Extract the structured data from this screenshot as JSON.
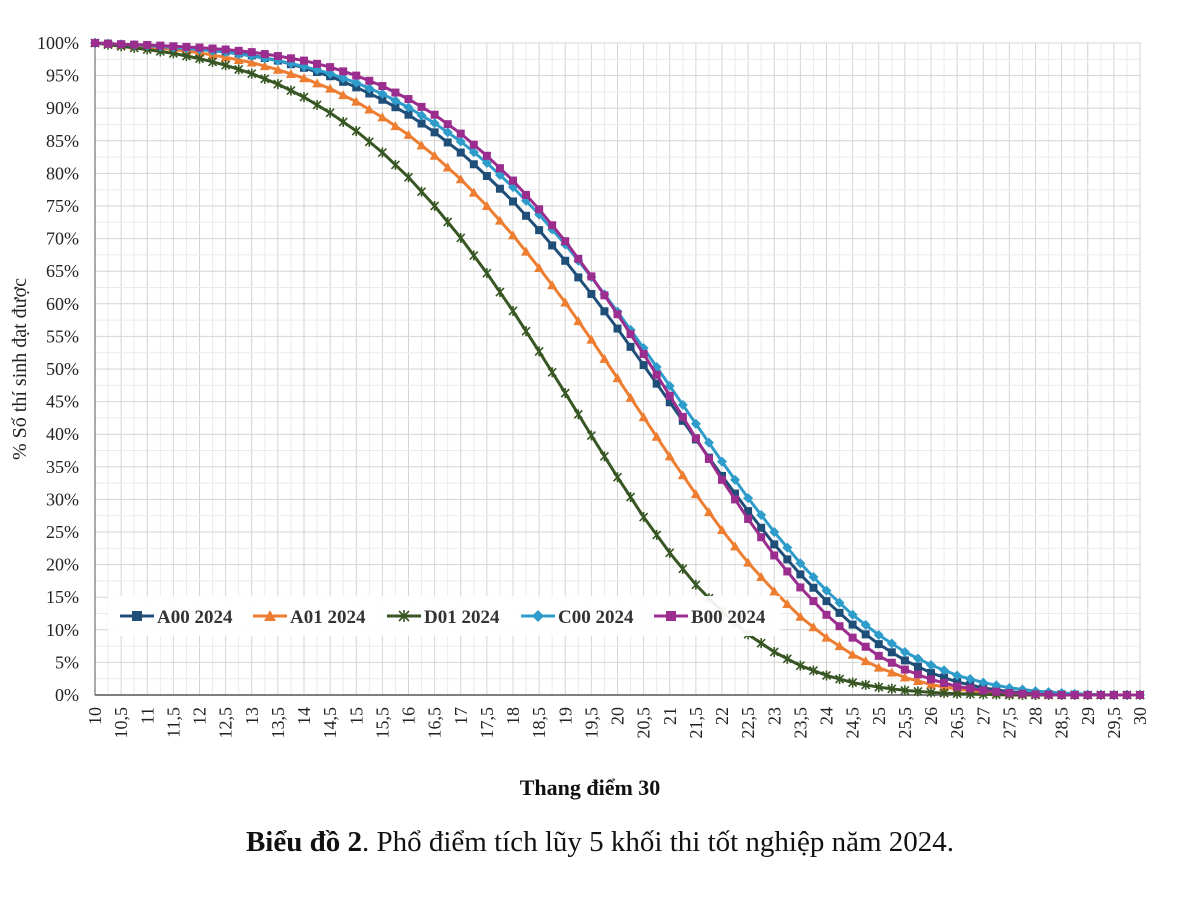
{
  "caption": {
    "bold": "Biểu đồ 2",
    "rest": ". Phổ điểm tích lũy 5 khối thi tốt nghiệp năm 2024."
  },
  "chart_data": {
    "type": "line",
    "title": "",
    "xlabel": "Thang điểm 30",
    "ylabel": "% Số thí sinh đạt được",
    "xlim": [
      10,
      30
    ],
    "ylim": [
      0,
      100
    ],
    "x_tick_labels": [
      "10",
      "10,5",
      "11",
      "11,5",
      "12",
      "12,5",
      "13",
      "13,5",
      "14",
      "14,5",
      "15",
      "15,5",
      "16",
      "16,5",
      "17",
      "17,5",
      "18",
      "18,5",
      "19",
      "19,5",
      "20",
      "20,5",
      "21",
      "21,5",
      "22",
      "22,5",
      "23",
      "23,5",
      "24",
      "24,5",
      "25",
      "25,5",
      "26",
      "26,5",
      "27",
      "27,5",
      "28",
      "28,5",
      "29",
      "29,5",
      "30"
    ],
    "y_tick_labels": [
      "0%",
      "5%",
      "10%",
      "15%",
      "20%",
      "25%",
      "30%",
      "35%",
      "40%",
      "45%",
      "50%",
      "55%",
      "60%",
      "65%",
      "70%",
      "75%",
      "80%",
      "85%",
      "90%",
      "95%",
      "100%"
    ],
    "grid": true,
    "legend_position": "bottom-left",
    "x": [
      10,
      10.5,
      11,
      11.5,
      12,
      12.5,
      13,
      13.5,
      14,
      14.5,
      15,
      15.5,
      16,
      16.5,
      17,
      17.5,
      18,
      18.5,
      19,
      19.5,
      20,
      20.5,
      21,
      21.5,
      22,
      22.5,
      23,
      23.5,
      24,
      24.5,
      25,
      25.5,
      26,
      26.5,
      27,
      27.5,
      28,
      28.5,
      29,
      29.5,
      30
    ],
    "series": [
      {
        "name": "A00 2024",
        "color": "#1f4e79",
        "marker": "square",
        "values": [
          100,
          99.8,
          99.6,
          99.4,
          99.1,
          98.7,
          98.1,
          97.3,
          96.2,
          94.9,
          93.2,
          91.3,
          89.0,
          86.3,
          83.2,
          79.6,
          75.7,
          71.3,
          66.6,
          61.5,
          56.2,
          50.6,
          44.9,
          39.2,
          33.6,
          28.2,
          23.1,
          18.5,
          14.4,
          10.8,
          7.8,
          5.3,
          3.4,
          2.0,
          1.1,
          0.5,
          0.2,
          0.1,
          0,
          0,
          0
        ]
      },
      {
        "name": "A01 2024",
        "color": "#ed7d31",
        "marker": "triangle",
        "values": [
          100,
          99.7,
          99.4,
          99.0,
          98.5,
          97.8,
          97.0,
          95.9,
          94.6,
          93.0,
          91.0,
          88.6,
          85.9,
          82.7,
          79.1,
          75.0,
          70.5,
          65.5,
          60.2,
          54.5,
          48.6,
          42.6,
          36.6,
          30.8,
          25.3,
          20.3,
          15.9,
          12.0,
          8.8,
          6.2,
          4.2,
          2.7,
          1.6,
          0.9,
          0.5,
          0.2,
          0.1,
          0,
          0,
          0,
          0
        ]
      },
      {
        "name": "D01 2024",
        "color": "#375623",
        "marker": "star",
        "values": [
          100,
          99.5,
          99.0,
          98.4,
          97.6,
          96.6,
          95.3,
          93.7,
          91.7,
          89.3,
          86.5,
          83.2,
          79.4,
          75.0,
          70.1,
          64.7,
          58.9,
          52.7,
          46.3,
          39.8,
          33.4,
          27.3,
          21.8,
          16.9,
          12.8,
          9.3,
          6.6,
          4.5,
          3.0,
          1.9,
          1.2,
          0.7,
          0.4,
          0.2,
          0.1,
          0,
          0,
          0,
          0,
          0,
          0
        ]
      },
      {
        "name": "C00 2024",
        "color": "#2e9cca",
        "marker": "diamond",
        "values": [
          100,
          99.8,
          99.6,
          99.3,
          99.0,
          98.6,
          98.0,
          97.3,
          96.4,
          95.3,
          93.9,
          92.2,
          90.1,
          87.7,
          84.9,
          81.6,
          77.9,
          73.7,
          69.1,
          64.1,
          58.8,
          53.2,
          47.4,
          41.6,
          35.8,
          30.2,
          25.0,
          20.2,
          16.0,
          12.3,
          9.2,
          6.6,
          4.6,
          3.0,
          1.9,
          1.1,
          0.6,
          0.3,
          0.1,
          0,
          0
        ]
      },
      {
        "name": "B00 2024",
        "color": "#9b2d8e",
        "marker": "square",
        "values": [
          100,
          99.8,
          99.7,
          99.5,
          99.3,
          99.0,
          98.6,
          98.0,
          97.3,
          96.3,
          95.0,
          93.4,
          91.4,
          89.0,
          86.1,
          82.7,
          78.9,
          74.5,
          69.6,
          64.2,
          58.4,
          52.3,
          45.9,
          39.4,
          33.0,
          27.0,
          21.4,
          16.5,
          12.3,
          8.8,
          6.0,
          3.9,
          2.4,
          1.3,
          0.7,
          0.3,
          0.1,
          0,
          0,
          0,
          0
        ]
      }
    ]
  }
}
